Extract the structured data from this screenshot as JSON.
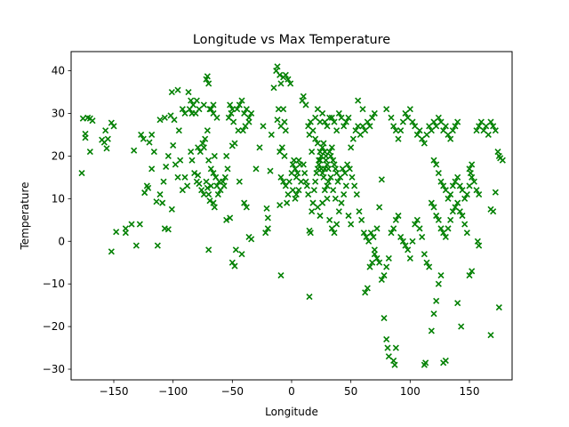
{
  "chart_data": {
    "type": "scatter",
    "title": "Longitude vs Max Temperature",
    "xlabel": "Longitude",
    "ylabel": "Temperature",
    "xlim": [
      -186,
      186
    ],
    "ylim": [
      -32.5,
      44.5
    ],
    "xticks": [
      -150,
      -100,
      -50,
      0,
      50,
      100,
      150
    ],
    "yticks": [
      -30,
      -20,
      -10,
      0,
      10,
      20,
      30,
      40
    ],
    "xtick_labels": [
      "−150",
      "−100",
      "−50",
      "0",
      "50",
      "100",
      "150"
    ],
    "ytick_labels": [
      "−30",
      "−20",
      "−10",
      "0",
      "10",
      "20",
      "30",
      "40"
    ],
    "grid": false,
    "legend": "none",
    "marker": "x",
    "color": "#008000",
    "points": [
      [
        -176,
        28.8
      ],
      [
        -174,
        24.3
      ],
      [
        -174,
        25.2
      ],
      [
        -172,
        29
      ],
      [
        -170,
        28.8
      ],
      [
        -168,
        28.3
      ],
      [
        -170,
        21
      ],
      [
        -177,
        16
      ],
      [
        -160,
        23.8
      ],
      [
        -158,
        23.2
      ],
      [
        -157,
        26
      ],
      [
        -156,
        21.8
      ],
      [
        -155,
        24
      ],
      [
        -152,
        27.8
      ],
      [
        -150,
        27
      ],
      [
        -152,
        -2.4
      ],
      [
        -148,
        2.2
      ],
      [
        -140,
        2
      ],
      [
        -140,
        3
      ],
      [
        -135,
        4
      ],
      [
        -133,
        21.3
      ],
      [
        -131,
        -1
      ],
      [
        -128,
        4
      ],
      [
        -127,
        25
      ],
      [
        -125,
        24
      ],
      [
        -124,
        11.4
      ],
      [
        -122,
        13
      ],
      [
        -121,
        12.5
      ],
      [
        -120,
        23.2
      ],
      [
        -118,
        17
      ],
      [
        -114,
        9.3
      ],
      [
        -111,
        11
      ],
      [
        -113,
        -1
      ],
      [
        -109,
        9
      ],
      [
        -107,
        3
      ],
      [
        -104,
        2.8
      ],
      [
        -101,
        7.5
      ],
      [
        -99,
        28.5
      ],
      [
        -95,
        26
      ],
      [
        -90,
        30
      ],
      [
        -86,
        31
      ],
      [
        -84,
        30
      ],
      [
        -81,
        30
      ],
      [
        -78,
        31
      ],
      [
        -74,
        32
      ],
      [
        -69,
        31
      ],
      [
        -66,
        32
      ],
      [
        -118,
        25
      ],
      [
        -116,
        21
      ],
      [
        -111,
        28.5
      ],
      [
        -107,
        29
      ],
      [
        -102,
        29.5
      ],
      [
        -101,
        35
      ],
      [
        -96,
        35.5
      ],
      [
        -92,
        31
      ],
      [
        -87,
        35
      ],
      [
        -85,
        33
      ],
      [
        -83,
        32
      ],
      [
        -80,
        33
      ],
      [
        -79,
        22
      ],
      [
        -77,
        21
      ],
      [
        -74,
        22
      ],
      [
        -72,
        38
      ],
      [
        -71,
        38.7
      ],
      [
        -70,
        37
      ],
      [
        -68,
        31
      ],
      [
        -66,
        30
      ],
      [
        -63,
        29
      ],
      [
        -108,
        14
      ],
      [
        -106,
        17.5
      ],
      [
        -104,
        20
      ],
      [
        -100,
        22.5
      ],
      [
        -98,
        18
      ],
      [
        -96,
        15
      ],
      [
        -94,
        19
      ],
      [
        -92,
        12
      ],
      [
        -90,
        15
      ],
      [
        -88,
        13
      ],
      [
        -85,
        21
      ],
      [
        -84,
        19
      ],
      [
        -82,
        16
      ],
      [
        -80,
        14
      ],
      [
        -79,
        15.5
      ],
      [
        -78,
        13.5
      ],
      [
        -76,
        12
      ],
      [
        -74,
        11
      ],
      [
        -72,
        14
      ],
      [
        -71,
        12.5
      ],
      [
        -70,
        11
      ],
      [
        -69,
        9.5
      ],
      [
        -68,
        13
      ],
      [
        -66,
        9
      ],
      [
        -65,
        8
      ],
      [
        -63,
        13
      ],
      [
        -62,
        11
      ],
      [
        -61,
        14
      ],
      [
        -60,
        12
      ],
      [
        -58,
        14
      ],
      [
        -57,
        13
      ],
      [
        -56,
        15
      ],
      [
        -55,
        20
      ],
      [
        -54,
        17
      ],
      [
        -75,
        23
      ],
      [
        -73,
        24
      ],
      [
        -71,
        26
      ],
      [
        -70,
        19
      ],
      [
        -68,
        17
      ],
      [
        -66,
        16
      ],
      [
        -65,
        20
      ],
      [
        -64,
        15
      ],
      [
        -70,
        -2
      ],
      [
        -55,
        5
      ],
      [
        -52,
        5.5
      ],
      [
        -50,
        -5
      ],
      [
        -48,
        -5.8
      ],
      [
        -47,
        -2
      ],
      [
        -42,
        -3
      ],
      [
        -36,
        1
      ],
      [
        -34,
        0.5
      ],
      [
        -38,
        8
      ],
      [
        -40,
        9
      ],
      [
        -44,
        14
      ],
      [
        -50,
        22.4
      ],
      [
        -48,
        23
      ],
      [
        -45,
        26
      ],
      [
        -41,
        26
      ],
      [
        -39,
        27
      ],
      [
        -36,
        28
      ],
      [
        -46,
        31
      ],
      [
        -44,
        32
      ],
      [
        -42,
        33
      ],
      [
        -40,
        30
      ],
      [
        -38,
        31
      ],
      [
        -36,
        29
      ],
      [
        -34,
        30
      ],
      [
        -53,
        29
      ],
      [
        -51,
        30
      ],
      [
        -49,
        28
      ],
      [
        -52,
        32
      ],
      [
        -50,
        31
      ],
      [
        -30,
        17
      ],
      [
        -27,
        22
      ],
      [
        -24,
        27
      ],
      [
        -22,
        2
      ],
      [
        -20,
        3
      ],
      [
        -21,
        7.7
      ],
      [
        -20,
        5.5
      ],
      [
        -18,
        16.5
      ],
      [
        -17,
        25
      ],
      [
        -15,
        36
      ],
      [
        -13,
        40
      ],
      [
        -12,
        41
      ],
      [
        -10,
        39
      ],
      [
        -9,
        37
      ],
      [
        -7,
        38.5
      ],
      [
        -5,
        39
      ],
      [
        -3,
        38
      ],
      [
        -1,
        37
      ],
      [
        -12,
        28.5
      ],
      [
        -11,
        31
      ],
      [
        -9,
        27
      ],
      [
        -7,
        31
      ],
      [
        -6,
        28
      ],
      [
        -5,
        26
      ],
      [
        -10,
        21
      ],
      [
        -8,
        22
      ],
      [
        -6,
        20
      ],
      [
        -9,
        15
      ],
      [
        -7,
        14
      ],
      [
        -5,
        13
      ],
      [
        -10,
        8.5
      ],
      [
        -9,
        -8
      ],
      [
        -4,
        9
      ],
      [
        -3,
        11
      ],
      [
        -2,
        14
      ],
      [
        0,
        16
      ],
      [
        1,
        18
      ],
      [
        2,
        19
      ],
      [
        3,
        17
      ],
      [
        4,
        15
      ],
      [
        5,
        16
      ],
      [
        6,
        19
      ],
      [
        7,
        18
      ],
      [
        1,
        12
      ],
      [
        3,
        10
      ],
      [
        4,
        11
      ],
      [
        6,
        12
      ],
      [
        8,
        14
      ],
      [
        9,
        33
      ],
      [
        10,
        34
      ],
      [
        12,
        32
      ],
      [
        14,
        27
      ],
      [
        15,
        25
      ],
      [
        16,
        28
      ],
      [
        17,
        21
      ],
      [
        18,
        26
      ],
      [
        20,
        24
      ],
      [
        22,
        23
      ],
      [
        23,
        18
      ],
      [
        24,
        19
      ],
      [
        25,
        17
      ],
      [
        26,
        16
      ],
      [
        27,
        15
      ],
      [
        28,
        17
      ],
      [
        29,
        20
      ],
      [
        10,
        18
      ],
      [
        11,
        16
      ],
      [
        12,
        14
      ],
      [
        13,
        13
      ],
      [
        14,
        11
      ],
      [
        15,
        2.5
      ],
      [
        16,
        2
      ],
      [
        15,
        -13
      ],
      [
        17,
        7
      ],
      [
        18,
        9
      ],
      [
        19,
        12
      ],
      [
        20,
        14
      ],
      [
        21,
        16
      ],
      [
        22,
        17
      ],
      [
        23,
        19
      ],
      [
        24,
        21
      ],
      [
        25,
        20
      ],
      [
        26,
        22
      ],
      [
        27,
        23
      ],
      [
        28,
        21
      ],
      [
        29,
        19
      ],
      [
        30,
        18
      ],
      [
        31,
        17
      ],
      [
        32,
        21
      ],
      [
        33,
        20
      ],
      [
        34,
        22
      ],
      [
        35,
        19
      ],
      [
        36,
        18
      ],
      [
        37,
        17
      ],
      [
        38,
        16
      ],
      [
        20,
        29
      ],
      [
        22,
        31
      ],
      [
        24,
        28
      ],
      [
        26,
        30
      ],
      [
        28,
        28
      ],
      [
        30,
        27
      ],
      [
        32,
        29
      ],
      [
        34,
        29
      ],
      [
        36,
        28
      ],
      [
        38,
        26
      ],
      [
        40,
        30
      ],
      [
        42,
        29
      ],
      [
        44,
        27
      ],
      [
        46,
        28
      ],
      [
        48,
        29
      ],
      [
        22,
        8
      ],
      [
        24,
        6
      ],
      [
        26,
        9
      ],
      [
        28,
        12
      ],
      [
        30,
        10
      ],
      [
        32,
        5
      ],
      [
        34,
        3
      ],
      [
        36,
        2
      ],
      [
        38,
        4
      ],
      [
        40,
        7
      ],
      [
        42,
        9
      ],
      [
        44,
        11
      ],
      [
        46,
        13
      ],
      [
        48,
        6
      ],
      [
        50,
        4
      ],
      [
        30,
        13
      ],
      [
        31,
        14
      ],
      [
        33,
        15
      ],
      [
        35,
        12
      ],
      [
        37,
        10
      ],
      [
        39,
        14
      ],
      [
        41,
        15
      ],
      [
        43,
        17
      ],
      [
        45,
        16
      ],
      [
        47,
        18
      ],
      [
        49,
        17
      ],
      [
        51,
        15
      ],
      [
        53,
        13
      ],
      [
        55,
        11
      ],
      [
        57,
        7
      ],
      [
        59,
        5
      ],
      [
        61,
        2
      ],
      [
        63,
        1
      ],
      [
        65,
        0
      ],
      [
        67,
        2
      ],
      [
        69,
        1
      ],
      [
        70,
        -2
      ],
      [
        72,
        -4
      ],
      [
        74,
        -5
      ],
      [
        76,
        -9
      ],
      [
        78,
        -8
      ],
      [
        80,
        -6
      ],
      [
        82,
        -4
      ],
      [
        50,
        22
      ],
      [
        52,
        24
      ],
      [
        54,
        26
      ],
      [
        56,
        27
      ],
      [
        58,
        25
      ],
      [
        60,
        27
      ],
      [
        62,
        26
      ],
      [
        64,
        28
      ],
      [
        66,
        27
      ],
      [
        68,
        29
      ],
      [
        70,
        30
      ],
      [
        56,
        33
      ],
      [
        60,
        31
      ],
      [
        62,
        -12
      ],
      [
        64,
        -11
      ],
      [
        66,
        -6
      ],
      [
        68,
        -5
      ],
      [
        70,
        -3
      ],
      [
        72,
        3
      ],
      [
        74,
        8
      ],
      [
        76,
        14.5
      ],
      [
        78,
        -18
      ],
      [
        80,
        -23
      ],
      [
        81,
        -25
      ],
      [
        82,
        -27
      ],
      [
        86,
        -28
      ],
      [
        87,
        -29
      ],
      [
        88,
        -25
      ],
      [
        80,
        31
      ],
      [
        84,
        29
      ],
      [
        86,
        27
      ],
      [
        88,
        26
      ],
      [
        90,
        24
      ],
      [
        92,
        26
      ],
      [
        94,
        28
      ],
      [
        96,
        30
      ],
      [
        98,
        29
      ],
      [
        100,
        31
      ],
      [
        102,
        28
      ],
      [
        104,
        27
      ],
      [
        106,
        25
      ],
      [
        108,
        26
      ],
      [
        110,
        24
      ],
      [
        112,
        23
      ],
      [
        114,
        25
      ],
      [
        116,
        27
      ],
      [
        118,
        26
      ],
      [
        120,
        28
      ],
      [
        122,
        27
      ],
      [
        124,
        29
      ],
      [
        126,
        28
      ],
      [
        128,
        26
      ],
      [
        130,
        27
      ],
      [
        132,
        25
      ],
      [
        134,
        24
      ],
      [
        136,
        26
      ],
      [
        138,
        27
      ],
      [
        140,
        28
      ],
      [
        84,
        2
      ],
      [
        86,
        3
      ],
      [
        88,
        5
      ],
      [
        90,
        6
      ],
      [
        92,
        1
      ],
      [
        94,
        0
      ],
      [
        96,
        -1
      ],
      [
        98,
        -2
      ],
      [
        100,
        -4
      ],
      [
        102,
        0
      ],
      [
        104,
        4
      ],
      [
        106,
        5
      ],
      [
        108,
        3
      ],
      [
        110,
        1
      ],
      [
        112,
        -3
      ],
      [
        114,
        -5
      ],
      [
        116,
        -6
      ],
      [
        118,
        -21
      ],
      [
        120,
        -17
      ],
      [
        122,
        -14
      ],
      [
        124,
        -10
      ],
      [
        126,
        -8
      ],
      [
        128,
        -28.5
      ],
      [
        130,
        -28
      ],
      [
        112,
        -29
      ],
      [
        113,
        -28.5
      ],
      [
        120,
        19
      ],
      [
        122,
        18
      ],
      [
        124,
        16
      ],
      [
        126,
        14
      ],
      [
        128,
        13
      ],
      [
        130,
        12
      ],
      [
        132,
        10
      ],
      [
        134,
        11
      ],
      [
        136,
        13
      ],
      [
        138,
        14
      ],
      [
        140,
        15
      ],
      [
        142,
        13
      ],
      [
        144,
        12
      ],
      [
        146,
        10
      ],
      [
        148,
        11
      ],
      [
        150,
        13
      ],
      [
        152,
        15
      ],
      [
        154,
        14
      ],
      [
        156,
        12
      ],
      [
        158,
        11
      ],
      [
        118,
        9
      ],
      [
        120,
        8
      ],
      [
        122,
        6
      ],
      [
        124,
        5
      ],
      [
        126,
        3
      ],
      [
        128,
        2
      ],
      [
        130,
        1
      ],
      [
        132,
        3
      ],
      [
        134,
        5
      ],
      [
        136,
        7
      ],
      [
        138,
        8
      ],
      [
        140,
        9
      ],
      [
        142,
        7
      ],
      [
        144,
        6
      ],
      [
        146,
        4
      ],
      [
        148,
        2
      ],
      [
        150,
        -8
      ],
      [
        152,
        -7
      ],
      [
        140,
        -14.5
      ],
      [
        143,
        -20
      ],
      [
        168,
        -22
      ],
      [
        175,
        -15.5
      ],
      [
        150,
        17
      ],
      [
        151,
        16
      ],
      [
        152,
        18
      ],
      [
        156,
        26
      ],
      [
        158,
        27
      ],
      [
        160,
        28
      ],
      [
        162,
        26
      ],
      [
        164,
        27
      ],
      [
        166,
        25
      ],
      [
        168,
        28
      ],
      [
        170,
        27
      ],
      [
        172,
        26
      ],
      [
        174,
        21
      ],
      [
        175,
        20
      ],
      [
        176,
        19.5
      ],
      [
        178,
        19
      ],
      [
        172,
        11.5
      ],
      [
        168,
        7.5
      ],
      [
        170,
        7
      ],
      [
        157,
        0
      ],
      [
        158,
        -1
      ]
    ]
  }
}
